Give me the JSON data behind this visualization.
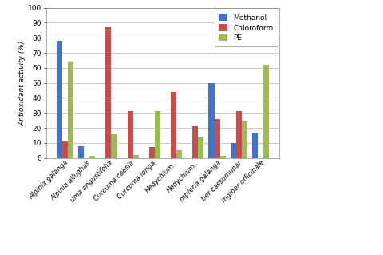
{
  "categories": [
    "Alpinia galanga",
    "Alpinia allughas",
    "uma angustifolia",
    "Curcuma caesia",
    "Curcuma longa",
    "Hedychium..",
    "Hedychium..",
    "mpferia galanga",
    "ber cassumunar",
    "ingiber officinale"
  ],
  "methanol": [
    78,
    8,
    0,
    0,
    0,
    0,
    0,
    50,
    10,
    17
  ],
  "chloroform": [
    11,
    0,
    87,
    31,
    7.5,
    44,
    21,
    26,
    31,
    0
  ],
  "pe": [
    64,
    1.5,
    16,
    2,
    31,
    5,
    13.5,
    1.5,
    25,
    62
  ],
  "bar_colors": {
    "methanol": "#4472c4",
    "chloroform": "#c0504d",
    "pe": "#9bbb59"
  },
  "ylabel": "Antioxidant activity (%)",
  "ylim": [
    0,
    100
  ],
  "yticks": [
    0,
    10,
    20,
    30,
    40,
    50,
    60,
    70,
    80,
    90,
    100
  ],
  "legend_labels": [
    "Methanol",
    "Chloroform",
    "PE"
  ],
  "background_color": "#ffffff",
  "grid_color": "#c0c0c0"
}
